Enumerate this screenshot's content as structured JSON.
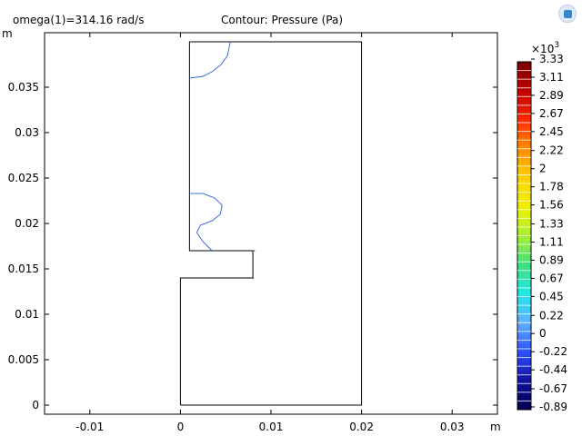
{
  "header": {
    "left_text": "omega(1)=314.16 rad/s",
    "center_text": "Contour: Pressure (Pa)",
    "nav_icon": "view-cube-icon"
  },
  "chart_data": {
    "type": "contour",
    "x_unit": "m",
    "y_unit": "m",
    "xlim": [
      -0.015,
      0.035
    ],
    "ylim": [
      -0.001,
      0.041
    ],
    "x_ticks": [
      -0.01,
      0,
      0.01,
      0.02,
      0.03
    ],
    "x_tick_labels": [
      "-0.01",
      "0",
      "0.01",
      "0.02",
      "0.03"
    ],
    "y_ticks": [
      0,
      0.005,
      0.01,
      0.015,
      0.02,
      0.025,
      0.03,
      0.035
    ],
    "y_tick_labels": [
      "0",
      "0.005",
      "0.01",
      "0.015",
      "0.02",
      "0.025",
      "0.03",
      "0.035"
    ],
    "grid": false,
    "domain_outline": [
      [
        0,
        0
      ],
      [
        0.02,
        0
      ],
      [
        0.02,
        0.04
      ],
      [
        0.001,
        0.04
      ],
      [
        0.001,
        0.017
      ],
      [
        0.008,
        0.017
      ],
      [
        0.008,
        0.014
      ],
      [
        0,
        0.014
      ],
      [
        0,
        0
      ]
    ],
    "contour_lines": [
      {
        "color": "#3f6fd6",
        "points": [
          [
            0.0055,
            0.04
          ],
          [
            0.0052,
            0.0385
          ],
          [
            0.0045,
            0.0375
          ],
          [
            0.0035,
            0.0367
          ],
          [
            0.0025,
            0.0362
          ],
          [
            0.001,
            0.036
          ]
        ]
      },
      {
        "color": "#3f6fd6",
        "points": [
          [
            0.001,
            0.0233
          ],
          [
            0.0025,
            0.0233
          ],
          [
            0.0038,
            0.0228
          ],
          [
            0.0046,
            0.022
          ],
          [
            0.0044,
            0.021
          ],
          [
            0.0035,
            0.0203
          ],
          [
            0.0022,
            0.0198
          ],
          [
            0.0018,
            0.019
          ],
          [
            0.0025,
            0.018
          ],
          [
            0.0035,
            0.017
          ]
        ]
      },
      {
        "color": "#3f6fd6",
        "points": [
          [
            0.0081,
            0.0169
          ],
          [
            0.0082,
            0.0171
          ]
        ]
      },
      {
        "color": "#3f6fd6",
        "points": [
          [
            0.008,
            0.014
          ],
          [
            0.0081,
            0.0139
          ]
        ]
      }
    ],
    "colorbar": {
      "multiplier": "×10",
      "exponent": "3",
      "tick_labels": [
        "3.33",
        "3.11",
        "2.89",
        "2.67",
        "2.45",
        "2.22",
        "2",
        "1.78",
        "1.56",
        "1.33",
        "1.11",
        "0.89",
        "0.67",
        "0.45",
        "0.22",
        "0",
        "-0.22",
        "-0.44",
        "-0.67",
        "-0.89"
      ],
      "min": -0.89,
      "max": 3.33,
      "colors": [
        "#7a0000",
        "#c00000",
        "#ff2a00",
        "#ff8c00",
        "#ffd200",
        "#f0f000",
        "#a8f030",
        "#40e080",
        "#20e8e8",
        "#60b0ff",
        "#3050ff",
        "#1010a0",
        "#000050"
      ]
    }
  }
}
